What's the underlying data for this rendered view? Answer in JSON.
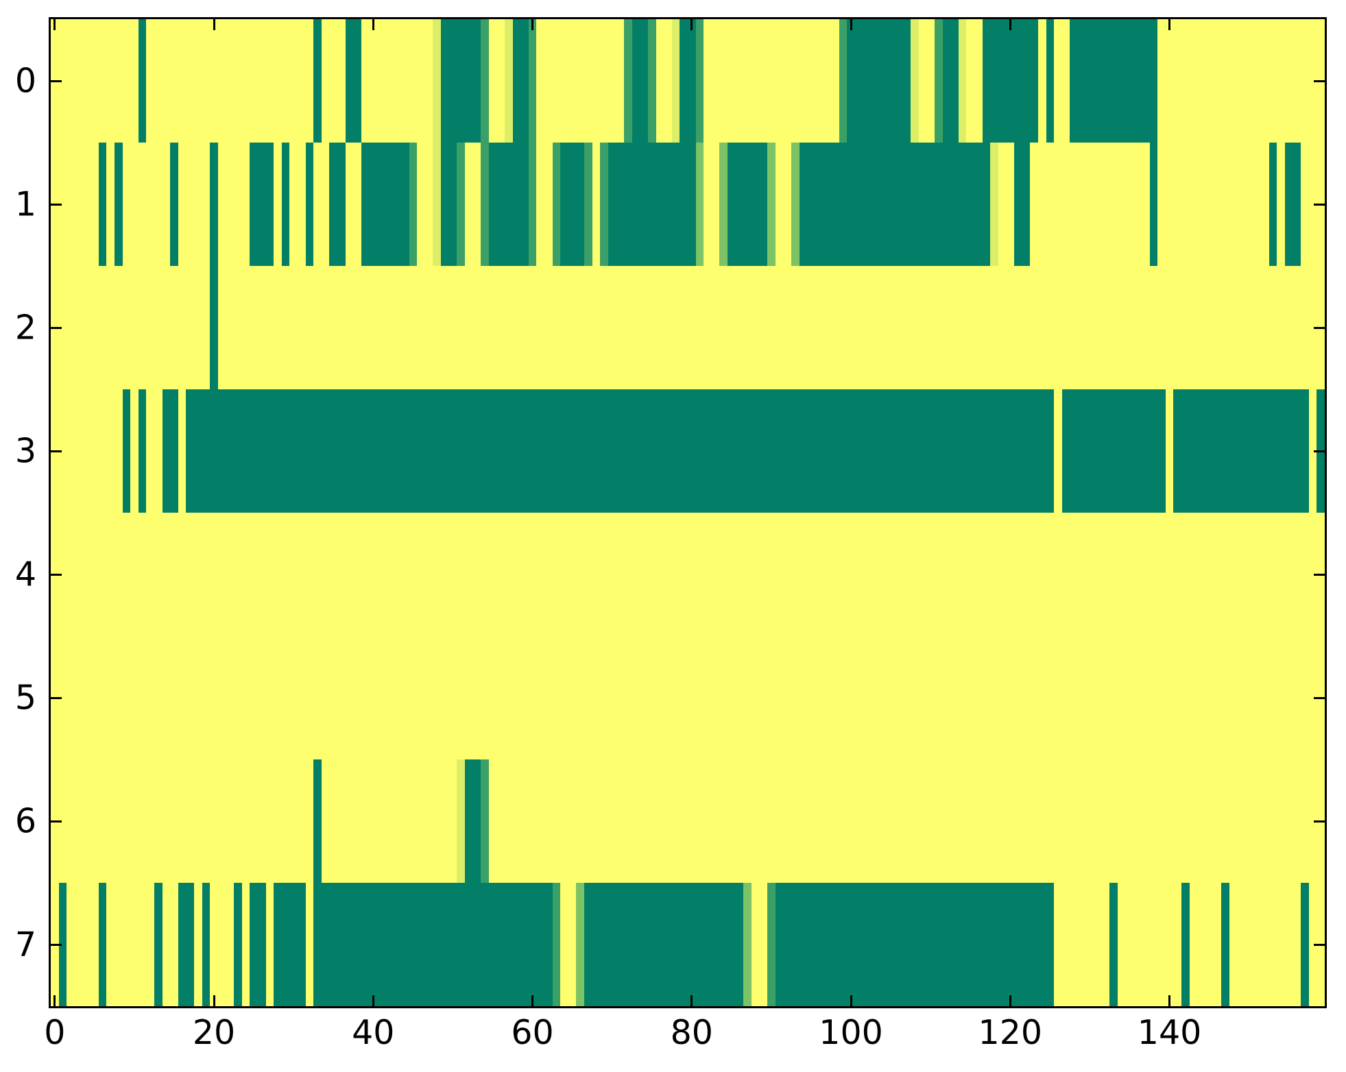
{
  "figure": {
    "background_color": "#ffffff",
    "spine_color": "#000000",
    "tick_color": "#000000",
    "tick_label_color": "#000000"
  },
  "chart_data": {
    "type": "heatmap",
    "title": "",
    "xlabel": "",
    "ylabel": "",
    "grid": false,
    "legend": "none",
    "x_range": [
      -0.5,
      159.5
    ],
    "y_range": [
      -0.5,
      7.5
    ],
    "n_cols": 160,
    "n_rows": 8,
    "x_tick_values": [
      0,
      20,
      40,
      60,
      80,
      100,
      120,
      140
    ],
    "x_tick_labels": [
      "0",
      "20",
      "40",
      "60",
      "80",
      "100",
      "120",
      "140"
    ],
    "y_tick_values": [
      0,
      1,
      2,
      3,
      4,
      5,
      6,
      7
    ],
    "y_tick_labels": [
      "0",
      "1",
      "2",
      "3",
      "4",
      "5",
      "6",
      "7"
    ],
    "colormap": {
      "name": "summer-like",
      "level_colors": [
        "#047f67",
        "#3aa067",
        "#7cc366",
        "#ddef68",
        "#fdff6e"
      ],
      "level_meaning": [
        "value 0 (dark green)",
        "value ~0.25",
        "value ~0.5",
        "value ~0.85",
        "value 1 (yellow background)"
      ]
    },
    "background_level": 4,
    "rows": [
      {
        "label": "0",
        "segments": [
          [
            11,
            12,
            0
          ],
          [
            33,
            34,
            0
          ],
          [
            37,
            39,
            0
          ],
          [
            48,
            49,
            3
          ],
          [
            49,
            54,
            0
          ],
          [
            54,
            55,
            1
          ],
          [
            57,
            58,
            3
          ],
          [
            58,
            60,
            0
          ],
          [
            60,
            61,
            1
          ],
          [
            72,
            73,
            1
          ],
          [
            73,
            75,
            0
          ],
          [
            75,
            76,
            1
          ],
          [
            78,
            79,
            3
          ],
          [
            79,
            81,
            0
          ],
          [
            81,
            82,
            1
          ],
          [
            99,
            100,
            1
          ],
          [
            100,
            108,
            0
          ],
          [
            108,
            109,
            3
          ],
          [
            111,
            112,
            1
          ],
          [
            112,
            114,
            0
          ],
          [
            114,
            115,
            3
          ],
          [
            117,
            124,
            0
          ],
          [
            125,
            126,
            0
          ],
          [
            128,
            139,
            0
          ]
        ]
      },
      {
        "label": "1",
        "segments": [
          [
            6,
            7,
            0
          ],
          [
            8,
            9,
            0
          ],
          [
            15,
            16,
            0
          ],
          [
            20,
            21,
            0
          ],
          [
            25,
            28,
            0
          ],
          [
            29,
            30,
            0
          ],
          [
            32,
            33,
            0
          ],
          [
            35,
            37,
            0
          ],
          [
            39,
            45,
            0
          ],
          [
            45,
            46,
            1
          ],
          [
            48,
            49,
            3
          ],
          [
            49,
            51,
            0
          ],
          [
            51,
            52,
            1
          ],
          [
            54,
            55,
            1
          ],
          [
            55,
            60,
            0
          ],
          [
            60,
            61,
            1
          ],
          [
            63,
            64,
            1
          ],
          [
            64,
            67,
            0
          ],
          [
            67,
            68,
            1
          ],
          [
            69,
            70,
            1
          ],
          [
            70,
            81,
            0
          ],
          [
            81,
            82,
            2
          ],
          [
            84,
            85,
            2
          ],
          [
            85,
            90,
            0
          ],
          [
            90,
            91,
            2
          ],
          [
            93,
            94,
            2
          ],
          [
            94,
            118,
            0
          ],
          [
            118,
            119,
            3
          ],
          [
            121,
            123,
            0
          ],
          [
            138,
            139,
            0
          ],
          [
            153,
            154,
            0
          ],
          [
            155,
            157,
            0
          ]
        ]
      },
      {
        "label": "2",
        "segments": [
          [
            20,
            21,
            0
          ]
        ]
      },
      {
        "label": "3",
        "segments": [
          [
            9,
            10,
            0
          ],
          [
            11,
            12,
            0
          ],
          [
            14,
            16,
            0
          ],
          [
            17,
            126,
            0
          ],
          [
            127,
            140,
            0
          ],
          [
            141,
            158,
            0
          ],
          [
            159,
            160,
            0
          ]
        ]
      },
      {
        "label": "4",
        "segments": []
      },
      {
        "label": "5",
        "segments": []
      },
      {
        "label": "6",
        "segments": [
          [
            33,
            34,
            0
          ],
          [
            51,
            52,
            3
          ],
          [
            52,
            54,
            0
          ],
          [
            54,
            55,
            1
          ]
        ]
      },
      {
        "label": "7",
        "segments": [
          [
            1,
            2,
            0
          ],
          [
            6,
            7,
            0
          ],
          [
            13,
            14,
            0
          ],
          [
            16,
            18,
            0
          ],
          [
            19,
            20,
            0
          ],
          [
            23,
            24,
            0
          ],
          [
            25,
            27,
            0
          ],
          [
            28,
            32,
            0
          ],
          [
            33,
            63,
            0
          ],
          [
            63,
            64,
            1
          ],
          [
            66,
            67,
            2
          ],
          [
            67,
            87,
            0
          ],
          [
            87,
            88,
            2
          ],
          [
            90,
            91,
            1
          ],
          [
            91,
            126,
            0
          ],
          [
            133,
            134,
            0
          ],
          [
            142,
            143,
            0
          ],
          [
            147,
            148,
            0
          ],
          [
            157,
            158,
            0
          ]
        ]
      }
    ]
  }
}
